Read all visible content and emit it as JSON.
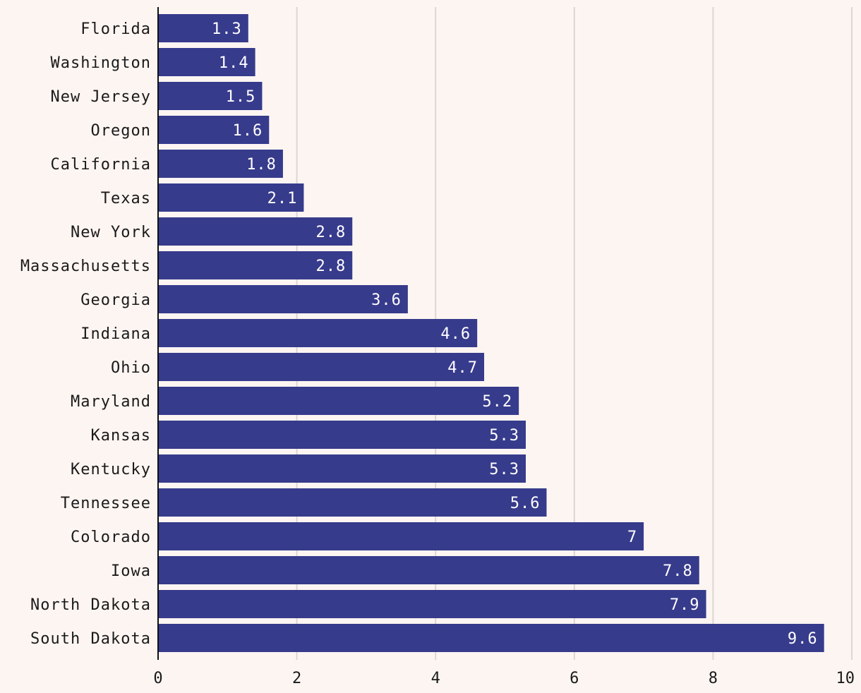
{
  "colors": {
    "background": "#fdf5f2",
    "bar": "#373b8c",
    "grid": "#dcd6d4",
    "axis": "#111111",
    "text": "#1a1a1a",
    "value_text": "#ffffff"
  },
  "chart_data": {
    "type": "bar",
    "orientation": "horizontal",
    "title": "",
    "xlabel": "",
    "ylabel": "",
    "xlim": [
      0,
      10
    ],
    "x_ticks": [
      "0",
      "2",
      "4",
      "6",
      "8",
      "10"
    ],
    "x_tick_values": [
      0,
      2,
      4,
      6,
      8,
      10
    ],
    "grid": true,
    "categories": [
      "Florida",
      "Washington",
      "New Jersey",
      "Oregon",
      "California",
      "Texas",
      "New York",
      "Massachusetts",
      "Georgia",
      "Indiana",
      "Ohio",
      "Maryland",
      "Kansas",
      "Kentucky",
      "Tennessee",
      "Colorado",
      "Iowa",
      "North Dakota",
      "South Dakota"
    ],
    "values": [
      1.3,
      1.4,
      1.5,
      1.6,
      1.8,
      2.1,
      2.8,
      2.8,
      3.6,
      4.6,
      4.7,
      5.2,
      5.3,
      5.3,
      5.6,
      7,
      7.8,
      7.9,
      9.6
    ],
    "value_labels": [
      "1.3",
      "1.4",
      "1.5",
      "1.6",
      "1.8",
      "2.1",
      "2.8",
      "2.8",
      "3.6",
      "4.6",
      "4.7",
      "5.2",
      "5.3",
      "5.3",
      "5.6",
      "7",
      "7.8",
      "7.9",
      "9.6"
    ]
  }
}
